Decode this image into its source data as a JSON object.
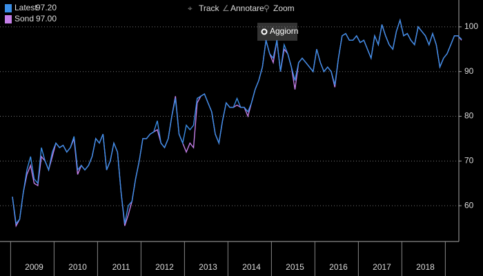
{
  "toolbar": {
    "track": "Track",
    "annotate": "Annotare",
    "zoom": "Zoom",
    "refresh": "Aggiorn"
  },
  "chart_data": {
    "type": "line",
    "categories": [
      null,
      null,
      null,
      null,
      null,
      null,
      "2009",
      null,
      null,
      null,
      null,
      null,
      null,
      null,
      null,
      null,
      null,
      null,
      "2010",
      null,
      null,
      null,
      null,
      null,
      null,
      null,
      null,
      null,
      null,
      null,
      "2011",
      null,
      null,
      null,
      null,
      null,
      null,
      null,
      null,
      null,
      null,
      null,
      "2012",
      null,
      null,
      null,
      null,
      null,
      null,
      null,
      null,
      null,
      null,
      null,
      "2013",
      null,
      null,
      null,
      null,
      null,
      null,
      null,
      null,
      null,
      null,
      null,
      "2014",
      null,
      null,
      null,
      null,
      null,
      null,
      null,
      null,
      null,
      null,
      null,
      "2015",
      null,
      null,
      null,
      null,
      null,
      null,
      null,
      null,
      null,
      null,
      null,
      "2016",
      null,
      null,
      null,
      null,
      null,
      null,
      null,
      null,
      null,
      null,
      null,
      "2017",
      null,
      null,
      null,
      null,
      null,
      null,
      null,
      null,
      null,
      null,
      null,
      "2018",
      null,
      null,
      null,
      null,
      null,
      null,
      null,
      null,
      null,
      null
    ],
    "series": [
      {
        "name": "Latest",
        "legend_value": "97.20",
        "color": "#3a8ee6",
        "values": [
          62,
          56,
          57,
          63,
          68,
          71,
          66,
          65,
          73,
          70,
          68,
          72,
          74,
          73,
          73.5,
          72,
          73,
          75.5,
          68,
          69,
          68,
          69,
          71,
          75,
          74,
          76,
          68,
          70,
          74,
          72,
          63,
          56,
          60,
          61,
          66,
          70,
          75,
          75,
          76,
          76.5,
          79,
          74,
          73,
          75,
          80,
          84,
          76,
          74,
          78,
          77,
          78,
          84,
          84.5,
          85,
          83,
          81,
          76,
          74,
          79,
          83,
          82,
          82,
          84,
          82,
          82,
          81,
          83,
          86,
          88,
          91,
          97,
          94,
          93,
          97,
          90,
          96,
          94,
          91,
          88,
          92,
          93,
          92,
          91,
          90,
          95,
          92,
          90,
          91,
          90,
          87,
          93,
          98,
          98.5,
          97,
          97,
          98,
          96.5,
          97,
          95,
          93,
          98,
          96,
          100.5,
          98,
          96,
          95,
          99,
          101.5,
          98,
          98.5,
          97,
          96,
          100,
          99,
          98,
          96,
          98.5,
          96,
          91,
          93,
          94,
          96,
          98,
          98,
          97.2
        ]
      },
      {
        "name": "Sond",
        "legend_value": "97.00",
        "color": "#c47fe8",
        "values": [
          62,
          55.5,
          57,
          63,
          67,
          69,
          65,
          64.5,
          71,
          70,
          68,
          71,
          74,
          73,
          73.5,
          72,
          73,
          75,
          67,
          69,
          68,
          69,
          71,
          75,
          74,
          76,
          68,
          70,
          74,
          72,
          63,
          55.5,
          58,
          61,
          66,
          70,
          75,
          75,
          76,
          76.5,
          77,
          74,
          73,
          75,
          80,
          84.5,
          76,
          74,
          72,
          74,
          73,
          83,
          84.5,
          85,
          83,
          81,
          76,
          74,
          79,
          83,
          82,
          82,
          82.5,
          82,
          82,
          80,
          83,
          86,
          88,
          91,
          97,
          94,
          92,
          97,
          90,
          95,
          94,
          91,
          86,
          92,
          93,
          92,
          91,
          90,
          95,
          92,
          90,
          91,
          90,
          86.5,
          93,
          98,
          98.5,
          97,
          97,
          98,
          96.5,
          97,
          95,
          93,
          98,
          96,
          100.5,
          98,
          96,
          95,
          99,
          101.5,
          98,
          98.5,
          97,
          96,
          100,
          99,
          98,
          96,
          98.5,
          96,
          91,
          93,
          94,
          96,
          98,
          98,
          97.0
        ]
      }
    ],
    "ylim": [
      52,
      106
    ],
    "yticks": [
      60,
      70,
      80,
      90,
      100
    ],
    "grid": true
  }
}
